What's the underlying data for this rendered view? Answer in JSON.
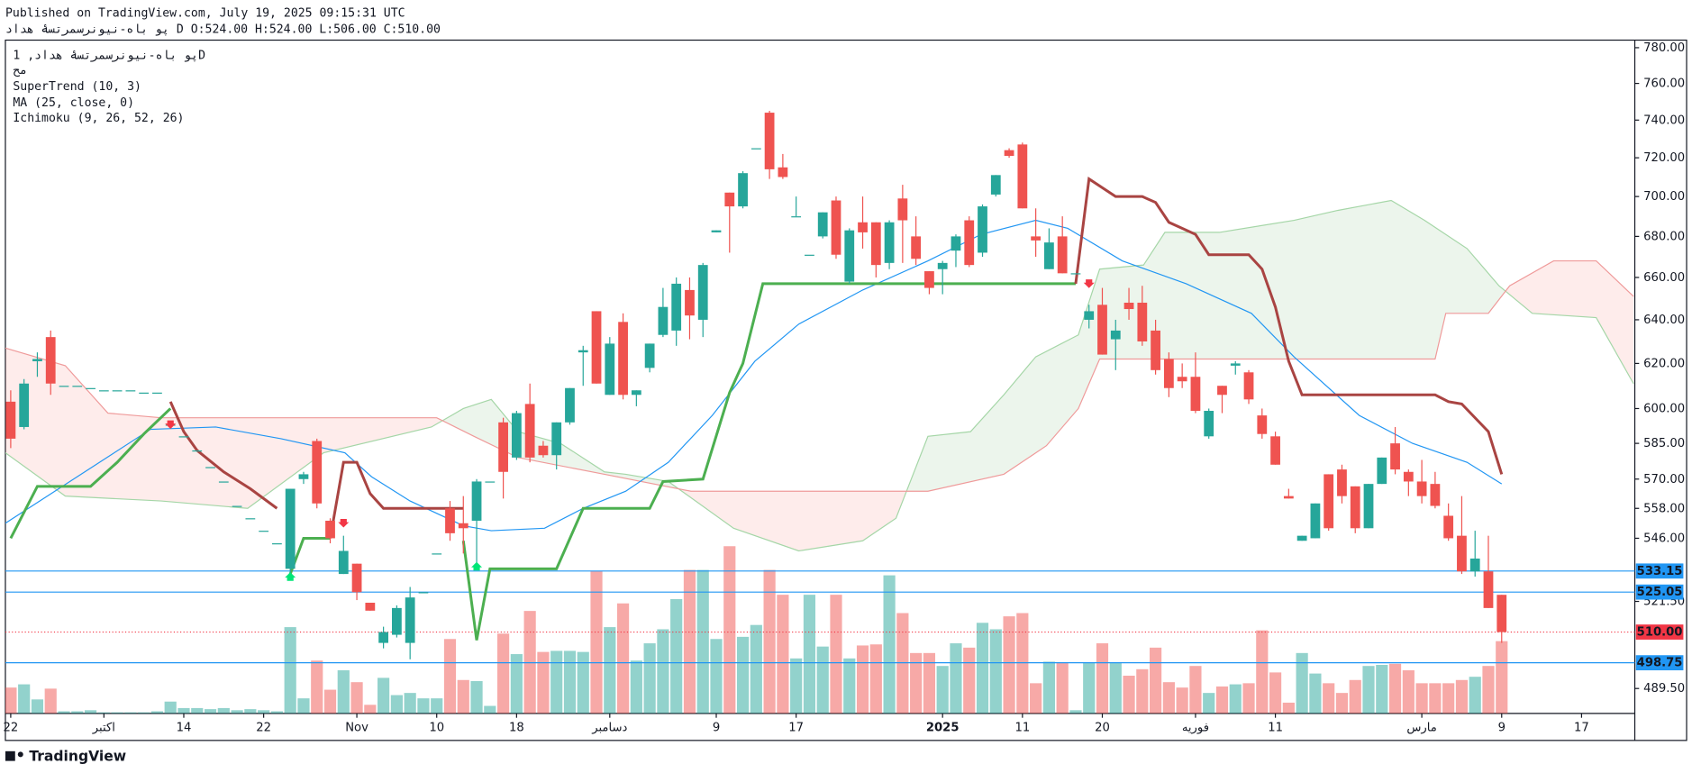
{
  "header": {
    "published": "Published on TradingView.com, July 19, 2025 09:15:31 UTC",
    "symbol_line": "پو باه-نیونرسمرتسۀ هداد D O:524.00 H:524.00 L:506.00 C:510.00"
  },
  "footer": {
    "brand": "TradingView"
  },
  "chart_data": {
    "type": "candlestick",
    "title": "پو باه-نیونرسمرتسۀ هداد, 1D",
    "subtitle": "مح",
    "indicator_labels": [
      "SuperTrend (10, 3)",
      "MA (25, close, 0)",
      "Ichimoku (9, 26, 52, 26)"
    ],
    "open": [
      603,
      592,
      621,
      632,
      610,
      610,
      609,
      608,
      608,
      608,
      607,
      607,
      593,
      588,
      582,
      575,
      569,
      559,
      554,
      549,
      544,
      534,
      570,
      586,
      553,
      532,
      536,
      521,
      506,
      509,
      506,
      525,
      540,
      558,
      552,
      553,
      569,
      594,
      579,
      602,
      584,
      580,
      594,
      625,
      644,
      606,
      639,
      606,
      618,
      633,
      635,
      654,
      640,
      682,
      702,
      695,
      725,
      744,
      715,
      690,
      671,
      680,
      698,
      658,
      687,
      687,
      667,
      699,
      680,
      663,
      664,
      673,
      688,
      672,
      701,
      724,
      727,
      680,
      664,
      680,
      662,
      640,
      647,
      631,
      648,
      648,
      635,
      622,
      614,
      614,
      588,
      610,
      619,
      616,
      597,
      588,
      563,
      545,
      546,
      572,
      574,
      567,
      550,
      568,
      585,
      573,
      569,
      568,
      555,
      547,
      533,
      533,
      524
    ],
    "high": [
      608,
      613,
      625,
      635,
      610,
      610,
      609,
      608,
      608,
      608,
      607,
      607,
      593,
      588,
      582,
      575,
      569,
      559,
      554,
      549,
      544,
      566,
      573,
      587,
      554,
      547,
      536,
      521,
      512,
      520,
      527,
      525,
      540,
      561,
      563,
      570,
      569,
      596,
      599,
      611,
      586,
      594,
      609,
      628,
      644,
      632,
      643,
      608,
      629,
      655,
      660,
      660,
      667,
      683,
      702,
      713,
      725,
      745,
      722,
      700,
      671,
      692,
      700,
      684,
      700,
      687,
      688,
      706,
      690,
      663,
      668,
      681,
      690,
      696,
      711,
      725,
      728,
      694,
      684,
      690,
      662,
      647,
      655,
      640,
      655,
      656,
      640,
      625,
      620,
      625,
      600,
      610,
      621,
      617,
      600,
      590,
      566,
      547,
      560,
      572,
      576,
      567,
      568,
      579,
      592,
      574,
      578,
      573,
      560,
      563,
      549,
      547,
      524
    ],
    "low": [
      583,
      591,
      614,
      606,
      610,
      610,
      609,
      608,
      608,
      608,
      607,
      607,
      593,
      588,
      582,
      575,
      569,
      559,
      554,
      549,
      544,
      530,
      568,
      558,
      544,
      532,
      522,
      518,
      504,
      508,
      500,
      525,
      540,
      545,
      540,
      536,
      569,
      562,
      578,
      577,
      579,
      574,
      593,
      610,
      611,
      606,
      604,
      601,
      616,
      632,
      628,
      631,
      632,
      682,
      672,
      694,
      725,
      709,
      709,
      690,
      671,
      679,
      669,
      657,
      674,
      660,
      664,
      667,
      666,
      652,
      652,
      665,
      665,
      670,
      700,
      720,
      694,
      670,
      664,
      662,
      662,
      636,
      624,
      617,
      640,
      628,
      615,
      605,
      609,
      598,
      587,
      598,
      615,
      602,
      587,
      576,
      562,
      545,
      546,
      549,
      560,
      548,
      550,
      568,
      572,
      563,
      560,
      558,
      545,
      532,
      531,
      519,
      506
    ],
    "close": [
      587,
      611,
      622,
      611,
      610,
      610,
      609,
      608,
      608,
      608,
      607,
      607,
      593,
      588,
      582,
      575,
      569,
      559,
      554,
      549,
      544,
      566,
      572,
      560,
      546,
      541,
      525,
      518,
      510,
      519,
      523,
      525,
      540,
      548,
      550,
      569,
      569,
      573,
      598,
      579,
      580,
      594,
      609,
      626,
      611,
      629,
      606,
      608,
      629,
      646,
      657,
      642,
      666,
      683,
      695,
      712,
      725,
      714,
      710,
      690,
      671,
      692,
      671,
      683,
      682,
      666,
      687,
      688,
      669,
      655,
      667,
      680,
      666,
      695,
      711,
      721,
      694,
      678,
      677,
      662,
      662,
      644,
      624,
      635,
      645,
      630,
      617,
      609,
      612,
      599,
      599,
      606,
      620,
      604,
      589,
      576,
      562,
      547,
      560,
      550,
      563,
      550,
      568,
      579,
      574,
      569,
      563,
      559,
      546,
      533,
      538,
      519,
      510
    ],
    "volume": [
      24,
      27,
      13,
      23,
      2,
      2,
      3,
      1,
      1,
      1,
      1,
      2,
      11,
      5,
      5,
      4,
      5,
      3,
      4,
      3,
      2,
      80,
      14,
      49,
      22,
      40,
      29,
      8,
      33,
      17,
      19,
      14,
      14,
      69,
      31,
      30,
      7,
      74,
      55,
      95,
      57,
      58,
      58,
      57,
      132,
      80,
      102,
      49,
      65,
      78,
      106,
      133,
      133,
      69,
      155,
      71,
      82,
      133,
      110,
      51,
      110,
      62,
      110,
      51,
      63,
      64,
      128,
      93,
      56,
      56,
      44,
      65,
      61,
      84,
      78,
      90,
      93,
      28,
      48,
      47,
      3,
      47,
      65,
      47,
      35,
      41,
      61,
      29,
      24,
      44,
      19,
      25,
      27,
      28,
      77,
      38,
      10,
      56,
      37,
      28,
      19,
      31,
      44,
      45,
      46,
      40,
      28,
      28,
      28,
      31,
      34,
      44,
      67
    ],
    "up_color": "#26a69a",
    "down_color": "#ef5350",
    "xlim": [
      -0.4,
      122
    ],
    "xticks": [
      {
        "value": 0,
        "label": "22"
      },
      {
        "value": 7,
        "label": "اکتبر"
      },
      {
        "value": 13,
        "label": "14"
      },
      {
        "value": 19,
        "label": "22"
      },
      {
        "value": 26,
        "label": "Nov"
      },
      {
        "value": 32,
        "label": "10"
      },
      {
        "value": 38,
        "label": "18"
      },
      {
        "value": 45,
        "label": "دسامبر"
      },
      {
        "value": 53,
        "label": "9"
      },
      {
        "value": 59,
        "label": "17"
      },
      {
        "value": 70,
        "label": "2025"
      },
      {
        "value": 76,
        "label": "11"
      },
      {
        "value": 82,
        "label": "20"
      },
      {
        "value": 89,
        "label": "فوریه"
      },
      {
        "value": 95,
        "label": "11"
      },
      {
        "value": 106,
        "label": "مارس"
      },
      {
        "value": 112,
        "label": "9"
      },
      {
        "value": 118,
        "label": "17"
      }
    ],
    "ylim": [
      480.7,
      784.3
    ],
    "log_scale": true,
    "grid": false,
    "yticks": [
      {
        "value": 780,
        "label": "780.00"
      },
      {
        "value": 760,
        "label": "760.00"
      },
      {
        "value": 740,
        "label": "740.00"
      },
      {
        "value": 720,
        "label": "720.00"
      },
      {
        "value": 700,
        "label": "700.00"
      },
      {
        "value": 680,
        "label": "680.00"
      },
      {
        "value": 660,
        "label": "660.00"
      },
      {
        "value": 640,
        "label": "640.00"
      },
      {
        "value": 620,
        "label": "620.00"
      },
      {
        "value": 600,
        "label": "600.00"
      },
      {
        "value": 585,
        "label": "585.00"
      },
      {
        "value": 570,
        "label": "570.00"
      },
      {
        "value": 558,
        "label": "558.00"
      },
      {
        "value": 546,
        "label": "546.00"
      },
      {
        "value": 521.5,
        "label": "521.50"
      },
      {
        "value": 489.5,
        "label": "489.50"
      }
    ],
    "price_lines": [
      {
        "value": 533.15,
        "label": "533.15",
        "color": "#2196f3"
      },
      {
        "value": 525.05,
        "label": "525.05",
        "color": "#2196f3"
      },
      {
        "value": 498.75,
        "label": "498.75",
        "color": "#2196f3"
      },
      {
        "value": 510,
        "label": "510.00",
        "color": "#f23645",
        "dashed": true
      }
    ],
    "cloud": {
      "up_color": "rgba(67,160,71,0.10)",
      "down_color": "rgba(244,67,54,0.10)"
    },
    "lines": [
      {
        "color": "#a5d6a7",
        "width": 1,
        "x": [
          -0.4,
          4.1,
          11.3,
          17.8,
          23.5,
          31.6,
          34,
          36.1,
          38.1,
          41.3,
          44.6,
          46.2,
          49.4,
          54.3,
          59.2,
          64,
          66.5,
          68.9,
          72.1,
          74.6,
          77,
          80.2,
          81.8,
          85.1,
          86.7,
          90.8,
          96.4,
          99.7,
          103.7,
          106.2,
          109.4,
          111.8,
          114.3,
          119.1,
          121.9
        ],
        "values": [
          581,
          563,
          561,
          558,
          581,
          592,
          600,
          604,
          590,
          585,
          573,
          572,
          569,
          550,
          541,
          545,
          554,
          588,
          590,
          606,
          623,
          633,
          664,
          666,
          682,
          682,
          688,
          693,
          698,
          688,
          674,
          656,
          643,
          641,
          611
        ]
      },
      {
        "color": "#ef9a9a",
        "width": 1,
        "x": [
          -0.4,
          4.1,
          7.3,
          11.3,
          32,
          34.8,
          38.1,
          44.6,
          51.1,
          68.9,
          74.6,
          77.8,
          80.2,
          81.8,
          107,
          107.8,
          111,
          112.6,
          115.9,
          119.1,
          121.9
        ],
        "values": [
          627,
          619,
          598,
          596,
          596,
          588,
          579,
          572,
          565,
          565,
          572,
          584,
          600,
          622,
          622,
          643,
          643,
          656,
          668,
          668,
          651
        ]
      },
      {
        "color": "#2196f3",
        "width": 1,
        "x": [
          -0.4,
          10.5,
          15.4,
          20.3,
          25.1,
          27.1,
          30,
          34,
          36.1,
          40.1,
          43,
          46.2,
          49.4,
          52.7,
          55.9,
          59.2,
          64,
          68.9,
          72.9,
          77,
          79.4,
          83.5,
          88.3,
          93.2,
          96.4,
          101.3,
          105.3,
          109.4,
          112
        ],
        "values": [
          552,
          591,
          592,
          587,
          581,
          571,
          561,
          551,
          549,
          550,
          558,
          565,
          577,
          597,
          621,
          638,
          654,
          668,
          681,
          688,
          684,
          668,
          657,
          643,
          623,
          597,
          585,
          577,
          568
        ]
      },
      {
        "color": "#4caf50",
        "width": 2.5,
        "x": [
          0,
          2,
          6,
          8,
          10,
          12,
          null,
          21,
          22,
          24,
          null,
          34,
          35,
          36,
          41,
          43,
          48,
          49,
          52,
          54,
          55,
          56.5,
          80
        ],
        "values": [
          546,
          567,
          567,
          577,
          589,
          600,
          null,
          532,
          546,
          546,
          null,
          545,
          507,
          534,
          534,
          558,
          558,
          569,
          570,
          607,
          620,
          657,
          657
        ]
      },
      {
        "color": "#a94442",
        "width": 2.5,
        "x": [
          12,
          13,
          14,
          16,
          18,
          20,
          null,
          24,
          25,
          26,
          27,
          28,
          34,
          null,
          80,
          81,
          83,
          85,
          86,
          87,
          89,
          90,
          93,
          94,
          95,
          96,
          97,
          107,
          108,
          109,
          111,
          112
        ],
        "values": [
          603,
          590,
          582,
          573,
          566,
          558,
          null,
          546,
          577,
          577,
          564,
          558,
          558,
          null,
          657,
          709,
          700,
          700,
          697,
          687,
          681,
          671,
          671,
          664,
          646,
          621,
          606,
          606,
          603,
          602,
          590,
          572
        ]
      }
    ],
    "signals": [
      {
        "x": 12,
        "value": 593,
        "shape": "arrow-down",
        "color": "#f23645"
      },
      {
        "x": 25,
        "value": 552,
        "shape": "arrow-down",
        "color": "#f23645"
      },
      {
        "x": 81,
        "value": 657,
        "shape": "arrow-down",
        "color": "#f23645"
      },
      {
        "x": 21,
        "value": 531,
        "shape": "arrow-up",
        "color": "#00e676"
      },
      {
        "x": 35,
        "value": 535,
        "shape": "arrow-up",
        "color": "#00e676"
      }
    ]
  }
}
